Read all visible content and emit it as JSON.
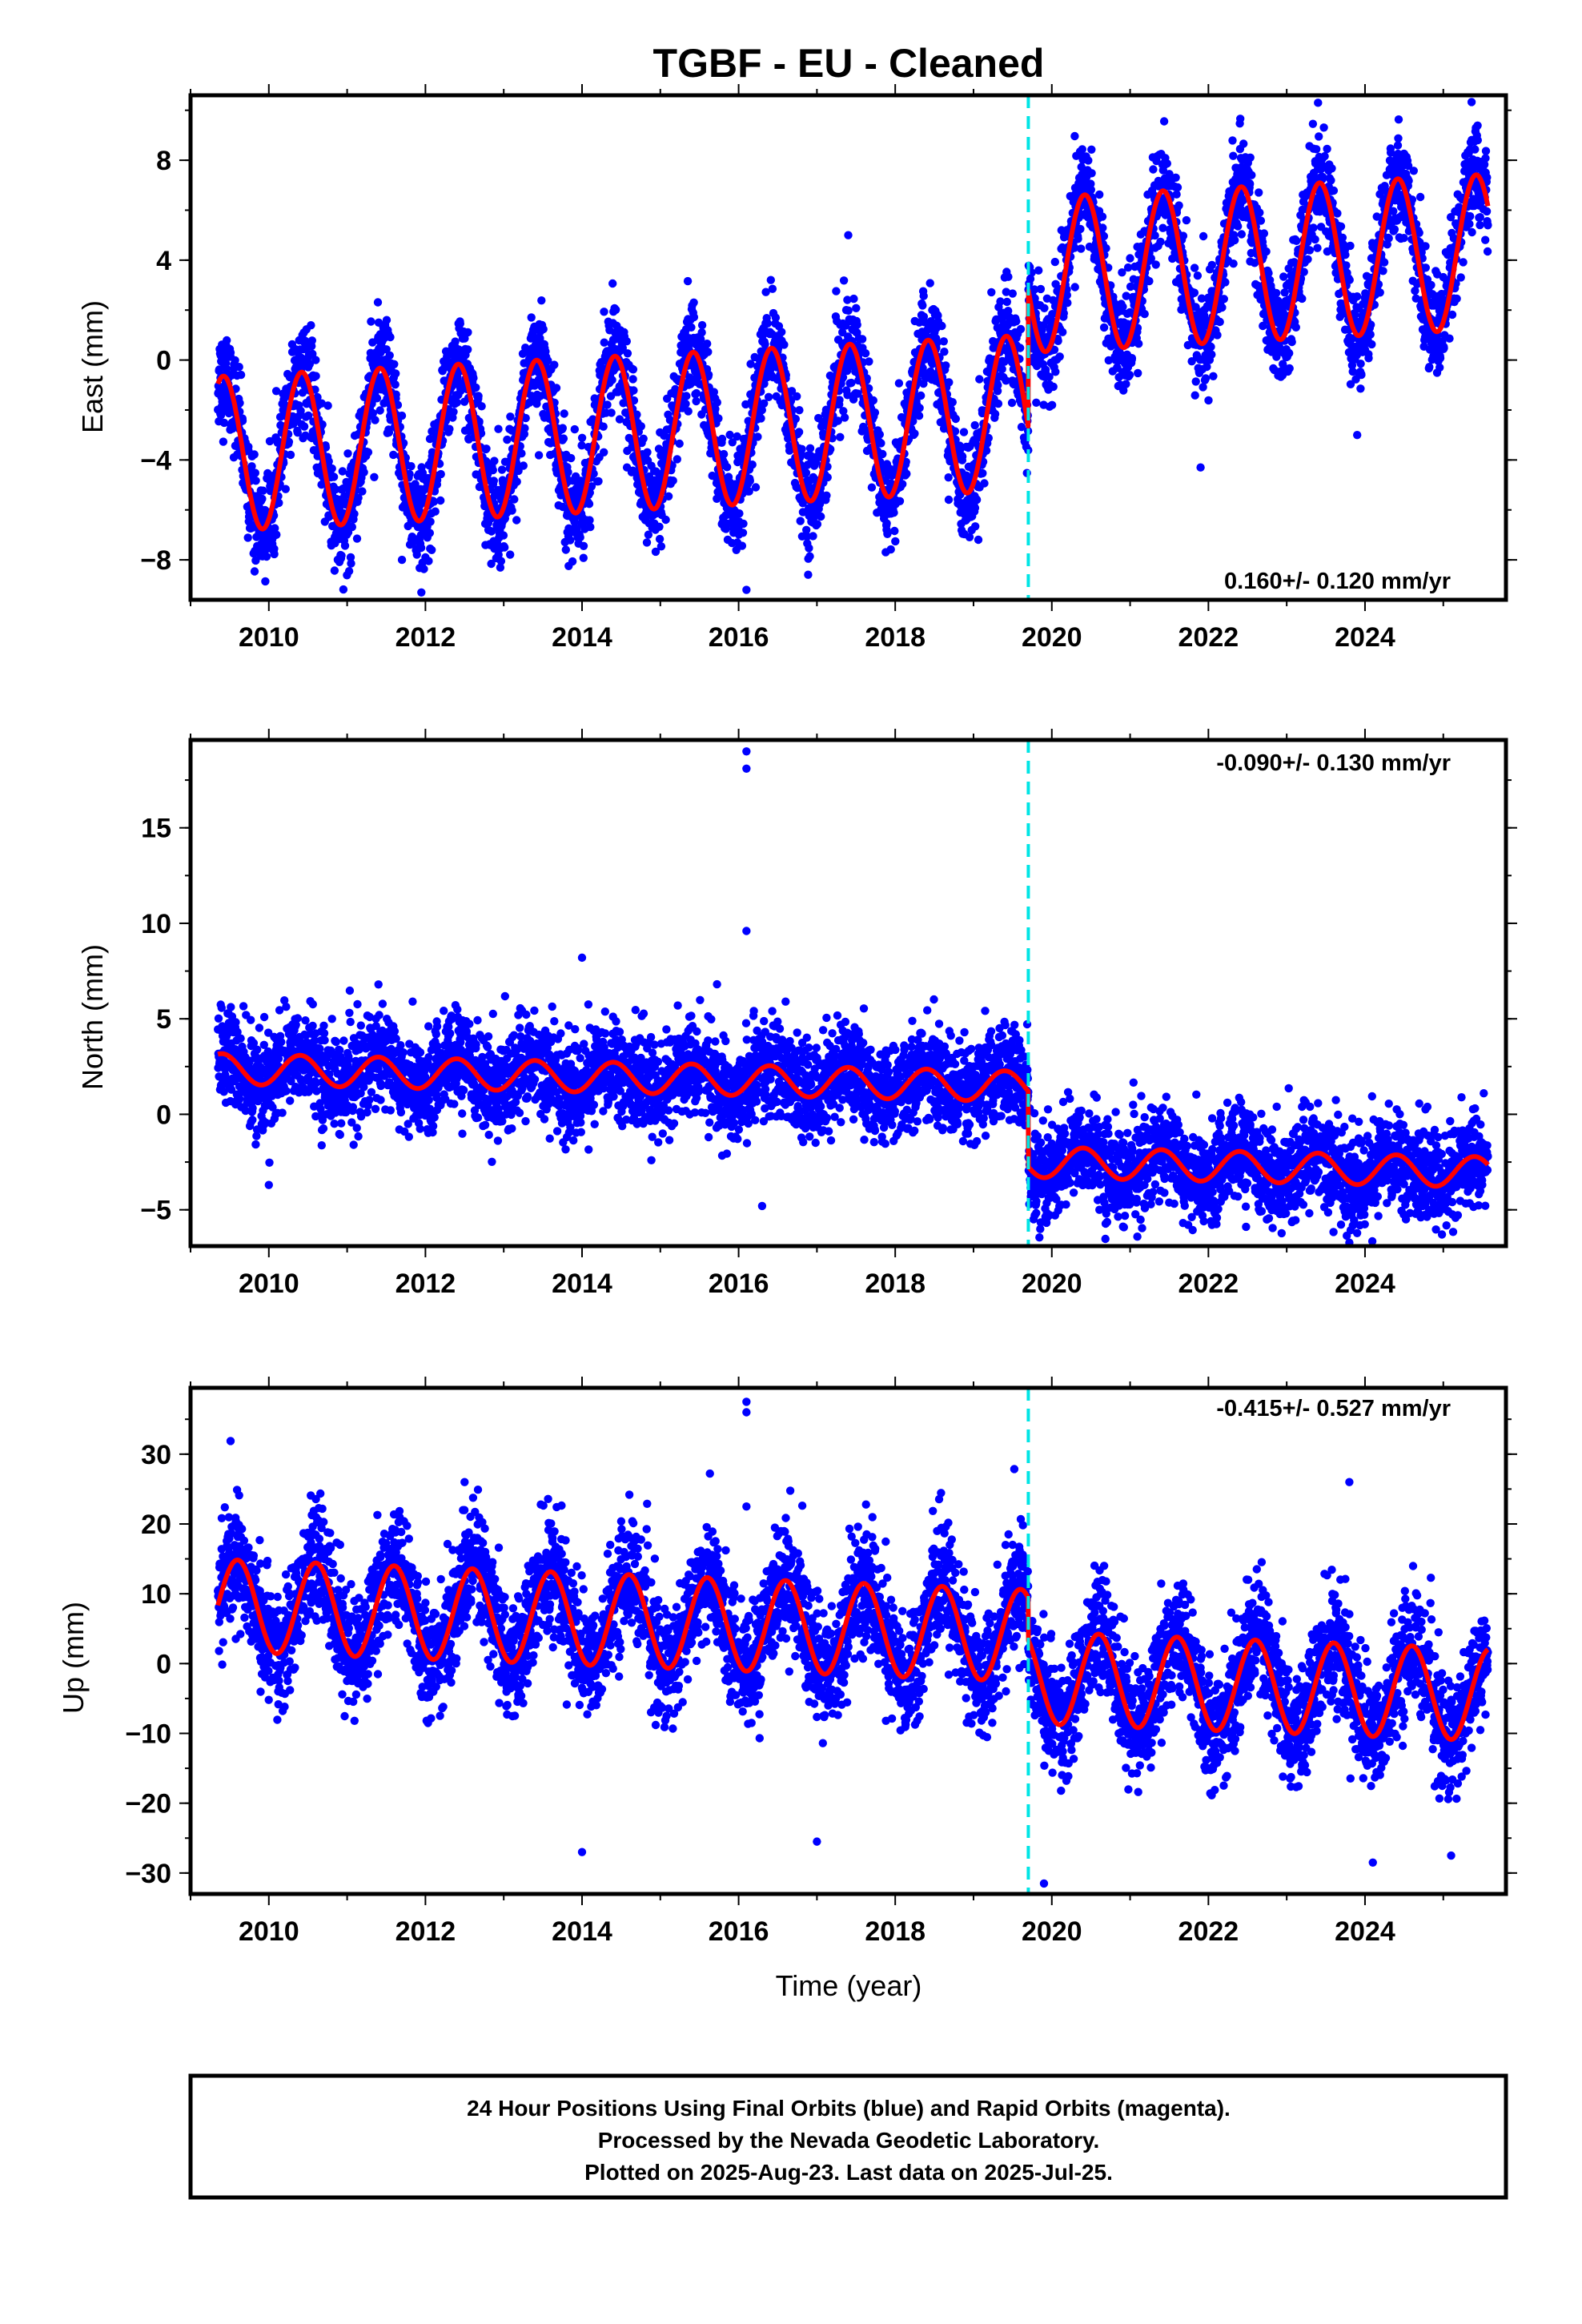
{
  "title": "TGBF  - EU - Cleaned",
  "colors": {
    "points": "#0000ff",
    "model": "#ff0000",
    "event_line": "#00e5e5",
    "frame": "#000000"
  },
  "footer": {
    "line1": "24 Hour Positions Using Final Orbits (blue) and Rapid Orbits (magenta).",
    "line2": "Processed by the Nevada Geodetic Laboratory.",
    "line3": "Plotted on 2025-Aug-23. Last data on 2025-Jul-25."
  },
  "chart_data": [
    {
      "type": "scatter",
      "component": "east",
      "ylabel": "East (mm)",
      "xlabel": "",
      "xlim": [
        2009.0,
        2025.8
      ],
      "ylim": [
        -9.6,
        10.6
      ],
      "xticks": [
        2010,
        2012,
        2014,
        2016,
        2018,
        2020,
        2022,
        2024
      ],
      "yticks": [
        -8,
        -4,
        0,
        4,
        8
      ],
      "rate_text": "0.160+/- 0.120 mm/yr",
      "rate_position": "bottom-right",
      "event_x": 2019.7,
      "series": [
        {
          "kind": "points",
          "color": "#0000ff"
        },
        {
          "kind": "model",
          "color": "#ff0000"
        }
      ],
      "model": {
        "x_start": 2009.35,
        "x_end": 2025.57,
        "pre_offset": -2.1,
        "post_offset": 3.4,
        "trend": 0.16,
        "amplitude": 3.1,
        "phase_peak": 0.42,
        "noise": 1.0
      },
      "outliers": [
        {
          "x": 2016.1,
          "y": -9.2
        },
        {
          "x": 2011.7,
          "y": -8.0
        },
        {
          "x": 2023.4,
          "y": 10.3
        },
        {
          "x": 2021.9,
          "y": -4.3
        },
        {
          "x": 2023.9,
          "y": -3.0
        },
        {
          "x": 2017.4,
          "y": 5.0
        }
      ]
    },
    {
      "type": "scatter",
      "component": "north",
      "ylabel": "North (mm)",
      "xlabel": "",
      "xlim": [
        2009.0,
        2025.8
      ],
      "ylim": [
        -6.9,
        19.6
      ],
      "xticks": [
        2010,
        2012,
        2014,
        2016,
        2018,
        2020,
        2022,
        2024
      ],
      "yticks": [
        -5,
        0,
        5,
        10,
        15
      ],
      "rate_text": "-0.090+/- 0.130 mm/yr",
      "rate_position": "top-right",
      "event_x": 2019.7,
      "series": [
        {
          "kind": "points",
          "color": "#0000ff"
        },
        {
          "kind": "model",
          "color": "#ff0000"
        }
      ],
      "model": {
        "x_start": 2009.35,
        "x_end": 2025.57,
        "pre_offset": 1.45,
        "post_offset": -2.5,
        "trend": -0.09,
        "amplitude": 0.8,
        "phase_peak": 0.4,
        "noise": 1.25
      },
      "outliers": [
        {
          "x": 2016.1,
          "y": 19.0
        },
        {
          "x": 2016.1,
          "y": 18.1
        },
        {
          "x": 2016.1,
          "y": 9.6
        },
        {
          "x": 2014.0,
          "y": 8.2
        },
        {
          "x": 2011.4,
          "y": 6.8
        },
        {
          "x": 2016.6,
          "y": 5.9
        },
        {
          "x": 2010.0,
          "y": -3.7
        },
        {
          "x": 2016.3,
          "y": -4.8
        }
      ]
    },
    {
      "type": "scatter",
      "component": "up",
      "ylabel": "Up (mm)",
      "xlabel": "Time (year)",
      "xlim": [
        2009.0,
        2025.8
      ],
      "ylim": [
        -33,
        39.5
      ],
      "xticks": [
        2010,
        2012,
        2014,
        2016,
        2018,
        2020,
        2022,
        2024
      ],
      "yticks": [
        -30,
        -20,
        -10,
        0,
        10,
        20,
        30
      ],
      "rate_text": "-0.415+/- 0.527 mm/yr",
      "rate_position": "top-right",
      "event_x": 2019.7,
      "series": [
        {
          "kind": "points",
          "color": "#0000ff"
        },
        {
          "kind": "model",
          "color": "#ff0000"
        }
      ],
      "model": {
        "x_start": 2009.35,
        "x_end": 2025.57,
        "pre_offset": 4.0,
        "post_offset": -2.0,
        "trend": -0.42,
        "amplitude": 6.6,
        "phase_peak": 0.6,
        "noise": 4.2
      },
      "outliers": [
        {
          "x": 2016.1,
          "y": 37.5
        },
        {
          "x": 2016.1,
          "y": 36.0
        },
        {
          "x": 2016.1,
          "y": 22.5
        },
        {
          "x": 2023.8,
          "y": 26.0
        },
        {
          "x": 2012.5,
          "y": 26.0
        },
        {
          "x": 2014.0,
          "y": -27.0
        },
        {
          "x": 2017.0,
          "y": -25.5
        },
        {
          "x": 2019.9,
          "y": -31.5
        },
        {
          "x": 2024.1,
          "y": -28.5
        },
        {
          "x": 2025.1,
          "y": -27.5
        }
      ]
    }
  ]
}
